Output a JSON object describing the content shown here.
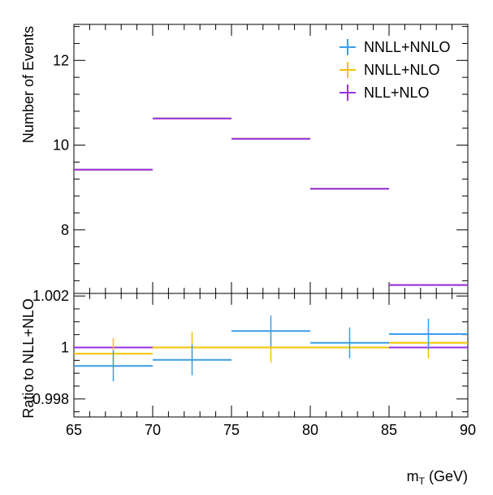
{
  "chart_data": [
    {
      "type": "histogram",
      "panel": "main",
      "ylabel": "Number of Events",
      "ylim": [
        6.5,
        12.85
      ],
      "yticks": [
        8,
        10,
        12
      ],
      "ytick_labels": [
        "8",
        "10",
        "12"
      ],
      "bin_edges": [
        65,
        70,
        75,
        80,
        85,
        90
      ],
      "series": [
        {
          "name": "NNLL+NNLO",
          "color": "#3a9ee8",
          "values": [
            9.42,
            10.63,
            10.15,
            8.97,
            6.7
          ]
        },
        {
          "name": "NNLL+NLO",
          "color": "#f5c200",
          "values": [
            9.42,
            10.63,
            10.15,
            8.97,
            6.7
          ]
        },
        {
          "name": "NLL+NLO",
          "color": "#9b30e6",
          "values": [
            9.42,
            10.63,
            10.15,
            8.97,
            6.7
          ]
        }
      ],
      "legend": {
        "position": "top-right",
        "entries": [
          "NNLL+NNLO",
          "NNLL+NLO",
          "NLL+NLO"
        ]
      }
    },
    {
      "type": "histogram",
      "panel": "ratio",
      "ylabel": "Ratio to NLL+NLO",
      "ylim": [
        0.9973,
        1.0021
      ],
      "yticks": [
        0.998,
        1,
        1.002
      ],
      "ytick_labels": [
        "0.998",
        "1",
        "1.002"
      ],
      "xlabel": "m_T (GeV)",
      "xlabel_main": "m",
      "xlabel_sub": "T",
      "xlabel_unit": " (GeV)",
      "xlim": [
        65,
        90
      ],
      "xticks": [
        65,
        70,
        75,
        80,
        85,
        90
      ],
      "xtick_labels": [
        "65",
        "70",
        "75",
        "80",
        "85",
        "90"
      ],
      "bin_edges": [
        65,
        70,
        75,
        80,
        85,
        90
      ],
      "bin_centers": [
        67.5,
        72.5,
        77.5,
        82.5,
        87.5
      ],
      "series": [
        {
          "name": "NNLL+NNLO",
          "color": "#3a9ee8",
          "values": [
            0.99928,
            0.99952,
            1.00064,
            1.00018,
            1.00052
          ],
          "errors": [
            0.0006,
            0.0006,
            0.0006,
            0.0006,
            0.0006
          ]
        },
        {
          "name": "NNLL+NLO",
          "color": "#f5c200",
          "values": [
            0.99976,
            1.0,
            1.0,
            1.0,
            1.00018
          ],
          "errors": [
            0.0006,
            0.0006,
            0.0006,
            0.0,
            0.0006
          ]
        },
        {
          "name": "NLL+NLO",
          "color": "#9b30e6",
          "values": [
            1.0,
            1.0,
            1.0,
            1.0,
            1.0
          ],
          "errors": [
            0,
            0,
            0,
            0,
            0
          ]
        }
      ]
    }
  ]
}
